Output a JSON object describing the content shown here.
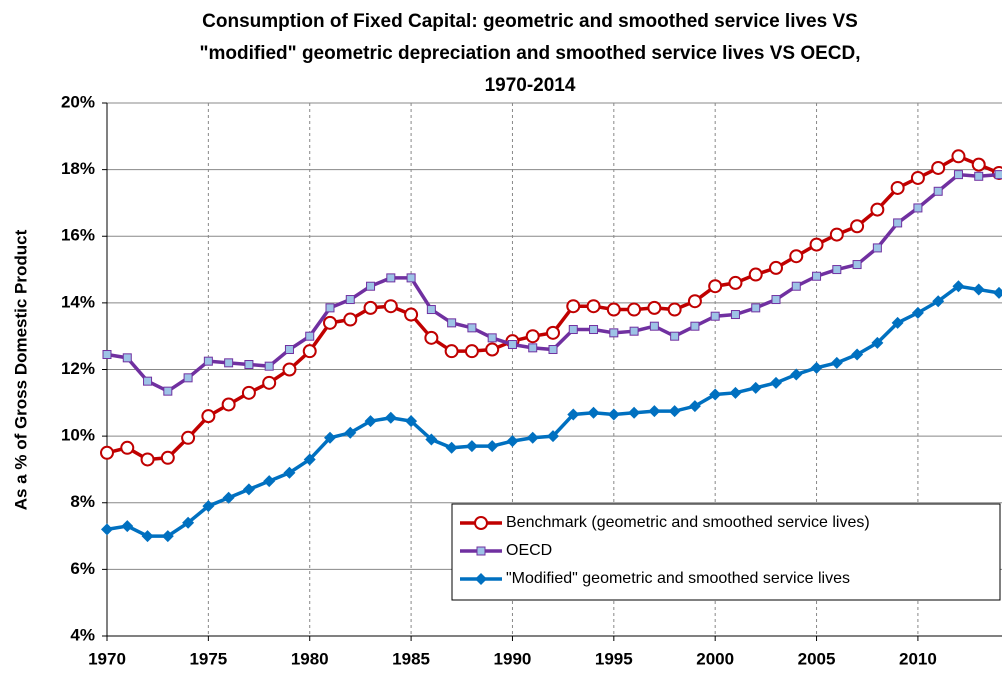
{
  "chart_data": {
    "type": "line",
    "title": [
      "Consumption of Fixed Capital: geometric and smoothed service lives VS",
      "\"modified\" geometric depreciation and smoothed service lives VS OECD,",
      "1970-2014"
    ],
    "y_label": "As a % of Gross Domestic Product",
    "x": [
      1970,
      1971,
      1972,
      1973,
      1974,
      1975,
      1976,
      1977,
      1978,
      1979,
      1980,
      1981,
      1982,
      1983,
      1984,
      1985,
      1986,
      1987,
      1988,
      1989,
      1990,
      1991,
      1992,
      1993,
      1994,
      1995,
      1996,
      1997,
      1998,
      1999,
      2000,
      2001,
      2002,
      2003,
      2004,
      2005,
      2006,
      2007,
      2008,
      2009,
      2010,
      2011,
      2012,
      2013,
      2014
    ],
    "xlim": [
      1970,
      2014
    ],
    "xticks": [
      1970,
      1975,
      1980,
      1985,
      1990,
      1995,
      2000,
      2005,
      2010
    ],
    "ylim": [
      4,
      20
    ],
    "yticks": [
      {
        "value": 4,
        "label": "4%"
      },
      {
        "value": 6,
        "label": "6%"
      },
      {
        "value": 8,
        "label": "8%"
      },
      {
        "value": 10,
        "label": "10%"
      },
      {
        "value": 12,
        "label": "12%"
      },
      {
        "value": 14,
        "label": "14%"
      },
      {
        "value": 16,
        "label": "16%"
      },
      {
        "value": 18,
        "label": "18%"
      },
      {
        "value": 20,
        "label": "20%"
      }
    ],
    "grid": true,
    "legend": "lower right",
    "series": [
      {
        "name": "Benchmark (geometric and smoothed service lives)",
        "color": "#c00000",
        "marker": "circle",
        "values": [
          9.5,
          9.65,
          9.3,
          9.35,
          9.95,
          10.6,
          10.95,
          11.3,
          11.6,
          12.0,
          12.55,
          13.4,
          13.5,
          13.85,
          13.9,
          13.65,
          12.95,
          12.55,
          12.55,
          12.6,
          12.85,
          13.0,
          13.1,
          13.9,
          13.9,
          13.8,
          13.8,
          13.85,
          13.8,
          14.05,
          14.5,
          14.6,
          14.85,
          15.05,
          15.4,
          15.75,
          16.05,
          16.3,
          16.8,
          17.45,
          17.75,
          18.05,
          18.4,
          18.15,
          17.9
        ]
      },
      {
        "name": "OECD",
        "color": "#7030a0",
        "marker": "square",
        "values": [
          12.45,
          12.35,
          11.65,
          11.35,
          11.75,
          12.25,
          12.2,
          12.15,
          12.1,
          12.6,
          13.0,
          13.85,
          14.1,
          14.5,
          14.75,
          14.75,
          13.8,
          13.4,
          13.25,
          12.95,
          12.75,
          12.65,
          12.6,
          13.2,
          13.2,
          13.1,
          13.15,
          13.3,
          13.0,
          13.3,
          13.6,
          13.65,
          13.85,
          14.1,
          14.5,
          14.8,
          15.0,
          15.15,
          15.65,
          16.4,
          16.85,
          17.35,
          17.85,
          17.8,
          17.85
        ]
      },
      {
        "name": "\"Modified\" geometric and smoothed service lives",
        "color": "#0070c0",
        "marker": "diamond",
        "values": [
          7.2,
          7.3,
          7.0,
          7.0,
          7.4,
          7.9,
          8.15,
          8.4,
          8.65,
          8.9,
          9.3,
          9.95,
          10.1,
          10.45,
          10.55,
          10.45,
          9.9,
          9.65,
          9.7,
          9.7,
          9.85,
          9.95,
          10.0,
          10.65,
          10.7,
          10.65,
          10.7,
          10.75,
          10.75,
          10.9,
          11.25,
          11.3,
          11.45,
          11.6,
          11.85,
          12.05,
          12.2,
          12.45,
          12.8,
          13.4,
          13.7,
          14.05,
          14.5,
          14.4,
          14.3
        ]
      }
    ]
  }
}
